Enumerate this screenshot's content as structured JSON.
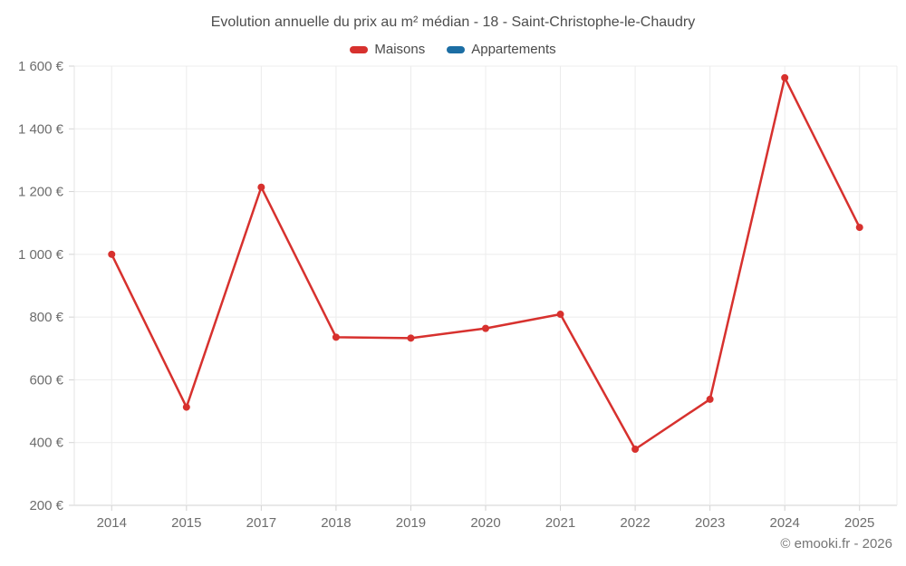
{
  "header": {
    "title": "Evolution annuelle du prix au m² médian - 18 - Saint-Christophe-le-Chaudry"
  },
  "legend": {
    "items": [
      {
        "label": "Maisons",
        "color": "#d7312e"
      },
      {
        "label": "Appartements",
        "color": "#1c6ea4"
      }
    ]
  },
  "footer": {
    "copyright": "© emooki.fr - 2026"
  },
  "colors": {
    "maisons_red": "#d7312e",
    "appartements_blue": "#1c6ea4",
    "gridline": "#ececec",
    "axis_line": "#d2d2d2",
    "left_border": "#e3e3e3",
    "axis_text": "#6d6d6d",
    "title_text": "#4d4d4d",
    "footer_text": "#757575",
    "background": "#ffffff"
  },
  "chart_data": {
    "type": "line",
    "title": "Evolution annuelle du prix au m² médian - 18 - Saint-Christophe-le-Chaudry",
    "xlabel": "",
    "ylabel": "",
    "categories": [
      "2014",
      "2015",
      "2017",
      "2018",
      "2019",
      "2020",
      "2021",
      "2022",
      "2023",
      "2024",
      "2025"
    ],
    "series": [
      {
        "name": "Maisons",
        "color": "#d7312e",
        "values": [
          1000,
          513,
          1214,
          736,
          733,
          764,
          809,
          379,
          538,
          1563,
          1086
        ]
      },
      {
        "name": "Appartements",
        "color": "#1c6ea4",
        "values": []
      }
    ],
    "ylim": [
      200,
      1600
    ],
    "ytick_step": 200,
    "ytick_labels": [
      "200 €",
      "400 €",
      "600 €",
      "800 €",
      "1 000 €",
      "1 200 €",
      "1 400 €",
      "1 600 €"
    ],
    "grid": true,
    "legend_position": "top",
    "marker_radius": 4,
    "line_width": 2.5
  }
}
